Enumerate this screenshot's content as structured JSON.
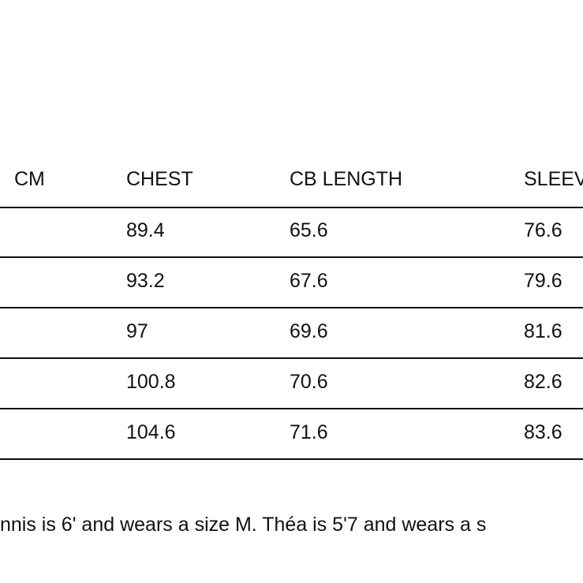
{
  "table": {
    "header": [
      "CM",
      "CHEST",
      "CB LENGTH",
      "SLEEV"
    ],
    "rows": [
      [
        "89.4",
        "65.6",
        "76.6"
      ],
      [
        "93.2",
        "67.6",
        "79.6"
      ],
      [
        "97",
        "69.6",
        "81.6"
      ],
      [
        "100.8",
        "70.6",
        "82.6"
      ],
      [
        "104.6",
        "71.6",
        "83.6"
      ]
    ]
  },
  "note": "nnis is 6' and wears a size M. Théa is 5'7 and wears a s"
}
